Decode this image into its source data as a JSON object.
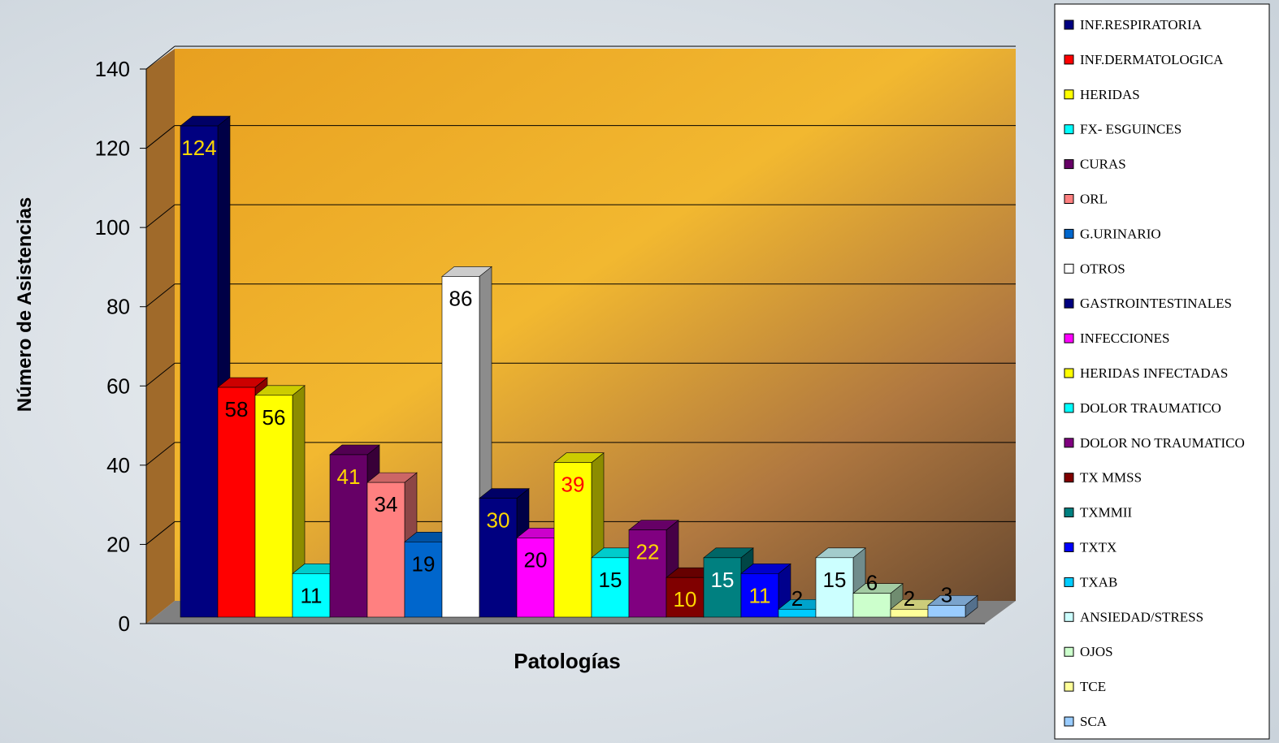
{
  "chart_data": {
    "type": "bar3d",
    "y_label": "Número de Asistencias",
    "x_label": "Patologías",
    "categories": [
      "INF.RESPIRATORIA",
      "INF.DERMATOLOGICA",
      "HERIDAS",
      "FX- ESGUINCES",
      "CURAS",
      "ORL",
      "G.URINARIO",
      "OTROS",
      "GASTROINTESTINALES",
      "INFECCIONES",
      "HERIDAS INFECTADAS",
      "DOLOR TRAUMATICO",
      "DOLOR NO TRAUMATICO",
      "TX MMSS",
      "TXMMII",
      "TXTX",
      "TXAB",
      "ANSIEDAD/STRESS",
      "OJOS",
      "TCE",
      "SCA"
    ],
    "values": [
      124,
      58,
      56,
      11,
      41,
      34,
      19,
      86,
      30,
      20,
      39,
      15,
      22,
      10,
      15,
      11,
      2,
      15,
      6,
      2,
      3
    ],
    "colors": [
      "#000080",
      "#ff0000",
      "#ffff00",
      "#00ffff",
      "#660066",
      "#ff8080",
      "#0066cc",
      "#ffffff",
      "#000080",
      "#ff00ff",
      "#ffff00",
      "#00ffff",
      "#800080",
      "#800000",
      "#008080",
      "#0000ff",
      "#00ccff",
      "#ccffff",
      "#ccffcc",
      "#ffff99",
      "#99ccff"
    ],
    "label_colors": [
      "#ffd700",
      "#000000",
      "#000000",
      "#000000",
      "#ffd700",
      "#000000",
      "#000000",
      "#000000",
      "#ffd700",
      "#000000",
      "#ff0000",
      "#000000",
      "#ffd700",
      "#ffd700",
      "#ffffff",
      "#ffd700",
      "#000000",
      "#000000",
      "#000000",
      "#000000",
      "#000000"
    ],
    "ylim": [
      0,
      140
    ],
    "yticks": [
      0,
      20,
      40,
      60,
      80,
      100,
      120,
      140
    ],
    "grid": true,
    "legend": "right"
  }
}
